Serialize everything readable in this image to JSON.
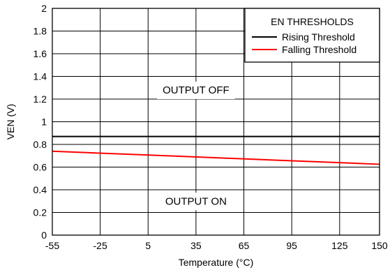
{
  "chart_data": {
    "type": "line",
    "xlabel": "Temperature (°C)",
    "ylabel": "VEN (V)",
    "xlim": [
      -55,
      150
    ],
    "ylim": [
      0,
      2
    ],
    "x_ticks": [
      -55,
      -25,
      5,
      35,
      65,
      95,
      125,
      150
    ],
    "y_ticks": [
      0,
      0.2,
      0.4,
      0.6,
      0.8,
      1,
      1.2,
      1.4,
      1.6,
      1.8,
      2
    ],
    "x_tick_labels": [
      "-55",
      "-25",
      "5",
      "35",
      "65",
      "95",
      "125",
      "150"
    ],
    "y_tick_labels": [
      "0",
      "0.2",
      "0.4",
      "0.6",
      "0.8",
      "1",
      "1.2",
      "1.4",
      "1.6",
      "1.8",
      "2"
    ],
    "grid": true,
    "legend": {
      "title": "EN THRESHOLDS",
      "placement": "top-right"
    },
    "series": [
      {
        "name": "Rising Threshold",
        "color": "#000000",
        "x": [
          -55,
          150
        ],
        "y": [
          0.87,
          0.87
        ]
      },
      {
        "name": "Falling Threshold",
        "color": "#ff0000",
        "x": [
          -55,
          150
        ],
        "y": [
          0.74,
          0.625
        ]
      }
    ],
    "annotations": [
      {
        "text": "OUTPUT OFF",
        "x": 35,
        "y": 1.28
      },
      {
        "text": "OUTPUT ON",
        "x": 35,
        "y": 0.3
      }
    ]
  }
}
